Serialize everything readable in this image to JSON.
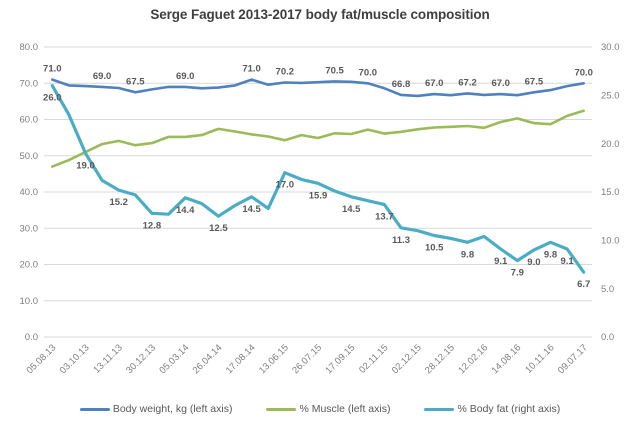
{
  "title": "Serge Faguet 2013-2017 body fat/muscle composition",
  "colors": {
    "grid": "#D9D9D9",
    "axis_text": "#7F7F7F",
    "data_label_text": "#595959",
    "title_text": "#3F3F3F",
    "legend_text": "#595959",
    "background": "#FFFFFF"
  },
  "chart_data": {
    "type": "line",
    "title": "Serge Faguet 2013-2017 body fat/muscle composition",
    "grid": true,
    "legend_position": "bottom",
    "categories": [
      "05.08.13",
      "03.10.13",
      "13.11.13",
      "30.12.13",
      "05.03.14",
      "26.04.14",
      "17.08.14",
      "13.06.15",
      "26.07.15",
      "17.09.15",
      "02.11.15",
      "02.12.15",
      "28.12.15",
      "12.02.16",
      "14.08.16",
      "10.11.16",
      "09.07.17"
    ],
    "category_label_every": 2,
    "axes": {
      "left": {
        "min": 0,
        "max": 80,
        "ticks": [
          "80.0",
          "70.0",
          "60.0",
          "50.0",
          "40.0",
          "30.0",
          "20.0",
          "10.0",
          "0.0"
        ]
      },
      "right": {
        "min": 0,
        "max": 30,
        "ticks": [
          "30.0",
          "25.0",
          "20.0",
          "15.0",
          "10.0",
          "5.0",
          "0.0"
        ]
      }
    },
    "series": [
      {
        "name": "Body weight, kg (left axis)",
        "color": "#4F81BD",
        "axis": "left",
        "width": 2.6,
        "label_placement": "above",
        "values": [
          71.0,
          69.4,
          69.2,
          69.0,
          68.7,
          67.5,
          68.3,
          69.0,
          69.0,
          68.6,
          68.8,
          69.4,
          71.0,
          69.6,
          70.2,
          70.1,
          70.3,
          70.5,
          70.4,
          70.0,
          68.6,
          66.8,
          66.5,
          67.0,
          66.7,
          67.2,
          66.8,
          67.0,
          66.7,
          67.5,
          68.1,
          69.2,
          70.0
        ],
        "data_labels": [
          {
            "i": 0,
            "text": "71.0"
          },
          {
            "i": 3,
            "text": "69.0"
          },
          {
            "i": 5,
            "text": "67.5"
          },
          {
            "i": 8,
            "text": "69.0"
          },
          {
            "i": 12,
            "text": "71.0"
          },
          {
            "i": 14,
            "text": "70.2"
          },
          {
            "i": 17,
            "text": "70.5"
          },
          {
            "i": 19,
            "text": "70.0"
          },
          {
            "i": 21,
            "text": "66.8"
          },
          {
            "i": 23,
            "text": "67.0"
          },
          {
            "i": 25,
            "text": "67.2"
          },
          {
            "i": 27,
            "text": "67.0"
          },
          {
            "i": 29,
            "text": "67.5"
          },
          {
            "i": 32,
            "text": "70.0"
          }
        ]
      },
      {
        "name": "% Muscle (left axis)",
        "color": "#9BBB59",
        "axis": "left",
        "width": 2.6,
        "label_placement": "none",
        "values": [
          47.0,
          48.8,
          51.0,
          53.2,
          54.1,
          52.9,
          53.5,
          55.2,
          55.2,
          55.7,
          57.4,
          56.7,
          55.9,
          55.3,
          54.3,
          55.7,
          54.9,
          56.2,
          56.0,
          57.2,
          56.1,
          56.6,
          57.3,
          57.8,
          58.0,
          58.2,
          57.7,
          59.3,
          60.3,
          59.0,
          58.7,
          61.0,
          62.4
        ],
        "data_labels": []
      },
      {
        "name": "% Body fat (right axis)",
        "color": "#4BACC6",
        "axis": "right",
        "width": 3.2,
        "label_placement": "below",
        "values": [
          26.0,
          23.0,
          19.0,
          16.2,
          15.2,
          14.7,
          12.8,
          12.7,
          14.4,
          13.8,
          12.5,
          13.6,
          14.5,
          13.3,
          17.0,
          16.3,
          15.9,
          15.1,
          14.5,
          14.1,
          13.7,
          11.3,
          11.0,
          10.5,
          10.2,
          9.8,
          10.4,
          9.1,
          7.9,
          9.0,
          9.8,
          9.1,
          6.7
        ],
        "data_labels": [
          {
            "i": 0,
            "text": "26.0"
          },
          {
            "i": 2,
            "text": "19.0"
          },
          {
            "i": 4,
            "text": "15.2"
          },
          {
            "i": 6,
            "text": "12.8"
          },
          {
            "i": 8,
            "text": "14.4"
          },
          {
            "i": 10,
            "text": "12.5"
          },
          {
            "i": 12,
            "text": "14.5"
          },
          {
            "i": 14,
            "text": "17.0"
          },
          {
            "i": 16,
            "text": "15.9"
          },
          {
            "i": 18,
            "text": "14.5"
          },
          {
            "i": 20,
            "text": "13.7"
          },
          {
            "i": 21,
            "text": "11.3"
          },
          {
            "i": 23,
            "text": "10.5"
          },
          {
            "i": 25,
            "text": "9.8"
          },
          {
            "i": 27,
            "text": "9.1"
          },
          {
            "i": 28,
            "text": "7.9"
          },
          {
            "i": 29,
            "text": "9.0"
          },
          {
            "i": 30,
            "text": "9.8"
          },
          {
            "i": 31,
            "text": "9.1"
          },
          {
            "i": 32,
            "text": "6.7"
          }
        ]
      }
    ]
  }
}
